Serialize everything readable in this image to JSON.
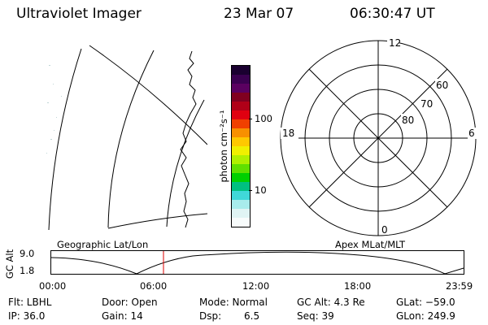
{
  "header": {
    "instrument": "Ultraviolet Imager",
    "date": "23 Mar 07",
    "time": "06:30:47 UT"
  },
  "colorbar": {
    "unit_label": "photon cm⁻²s⁻¹",
    "tick_100": "100",
    "tick_10": "10",
    "colors": [
      "#1a0030",
      "#3a0050",
      "#5a0060",
      "#800020",
      "#b00018",
      "#e00010",
      "#f04000",
      "#f89000",
      "#ffc800",
      "#f0f000",
      "#b0f000",
      "#60e000",
      "#00d000",
      "#00c080",
      "#40d8d8",
      "#a8ecec",
      "#e0f4f4",
      "#f8fcfc"
    ]
  },
  "polar": {
    "label_12": "12",
    "label_18": "18",
    "label_6": "6",
    "label_0": "0",
    "label_60": "60",
    "label_70": "70",
    "label_80": "80"
  },
  "orbit": {
    "left_label": "Geographic Lat/Lon",
    "right_label": "Apex MLat/MLT",
    "axis_title": "GC Alt",
    "ytick_top": "9.0",
    "ytick_bottom": "1.8",
    "xticks": [
      "00:00",
      "06:00",
      "12:00",
      "18:00",
      "23:59"
    ],
    "marker_color": "#dd0000"
  },
  "info": {
    "flt": "Flt: LBHL",
    "door": "Door: Open",
    "mode": "Mode: Normal",
    "gc_alt": "GC Alt: 4.3 Re",
    "glat": "GLat: −59.0",
    "ip": "IP: 36.0",
    "gain": "Gain: 14",
    "dsp_label": "Dsp:",
    "dsp_value": "6.5",
    "seq": "Seq: 39",
    "glon": "GLon: 249.9"
  }
}
